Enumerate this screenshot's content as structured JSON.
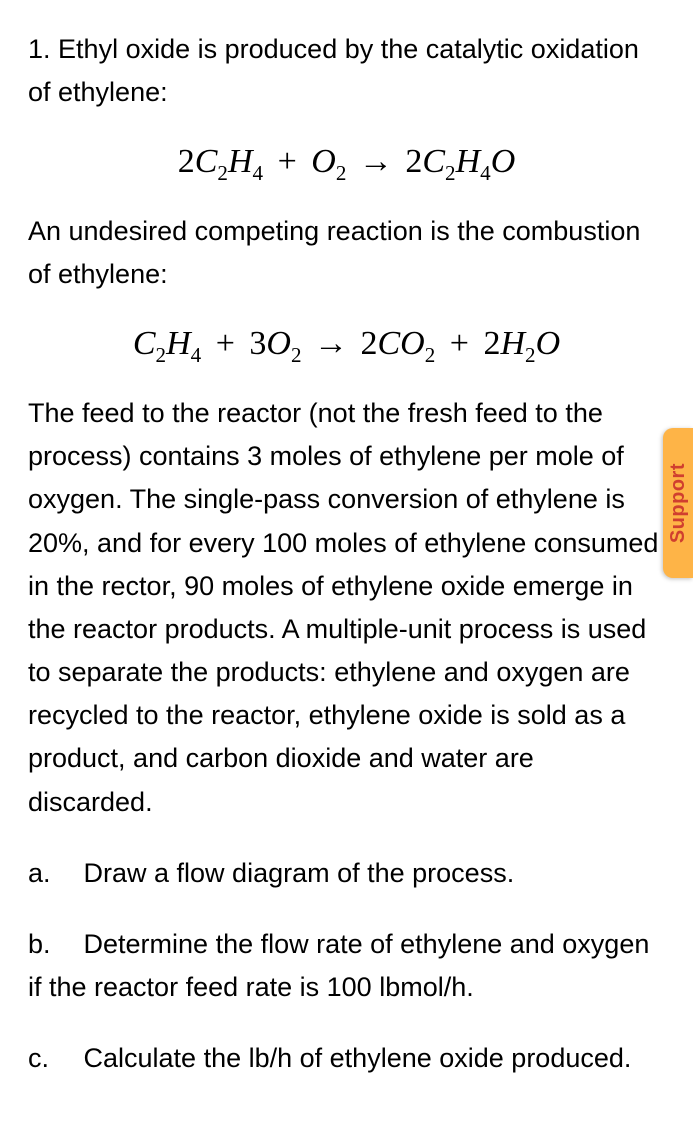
{
  "problem": {
    "number": "1.",
    "intro": "Ethyl oxide is produced by the catalytic oxidation of ethylene:",
    "eq1": {
      "lhs_coef1": "2",
      "lhs_sp1_C": "C",
      "lhs_sp1_Csub": "2",
      "lhs_sp1_H": "H",
      "lhs_sp1_Hsub": "4",
      "plus1": "+",
      "lhs_sp2_O": "O",
      "lhs_sp2_Osub": "2",
      "arrow": "→",
      "rhs_coef1": "2",
      "rhs_sp1_C": "C",
      "rhs_sp1_Csub": "2",
      "rhs_sp1_H": "H",
      "rhs_sp1_Hsub": "4",
      "rhs_sp1_O": "O"
    },
    "mid": "An undesired competing reaction is the combustion of ethylene:",
    "eq2": {
      "lhs_sp1_C": "C",
      "lhs_sp1_Csub": "2",
      "lhs_sp1_H": "H",
      "lhs_sp1_Hsub": "4",
      "plus1": "+",
      "lhs_coef2": "3",
      "lhs_sp2_O": "O",
      "lhs_sp2_Osub": "2",
      "arrow": "→",
      "rhs_coef1": "2",
      "rhs_sp1_C": "C",
      "rhs_sp1_O": "O",
      "rhs_sp1_Osub": "2",
      "plus2": "+",
      "rhs_coef2": "2",
      "rhs_sp2_H": "H",
      "rhs_sp2_Hsub": "2",
      "rhs_sp2_O": "O"
    },
    "body": "The feed to the reactor (not the fresh feed to the process) contains 3 moles of ethylene per mole of oxygen. The single-pass conversion of ethylene is 20%, and for every 100 moles of ethylene consumed in the rector, 90 moles of ethylene oxide emerge in the reactor products. A multiple-unit process is used to separate the products: ethylene and oxygen are recycled to the reactor, ethylene oxide is sold as a product, and carbon dioxide and water are discarded.",
    "parts": {
      "a_label": "a.",
      "a_text": "Draw a flow diagram of the process.",
      "b_label": "b.",
      "b_text": "Determine the flow rate of ethylene and oxygen if the reactor feed rate is 100 lbmol/h.",
      "c_label": "c.",
      "c_text": "Calculate the lb/h of ethylene oxide produced."
    }
  },
  "support": {
    "label": "Support",
    "bg_color": "#feb447",
    "text_color": "#d03f2f"
  }
}
